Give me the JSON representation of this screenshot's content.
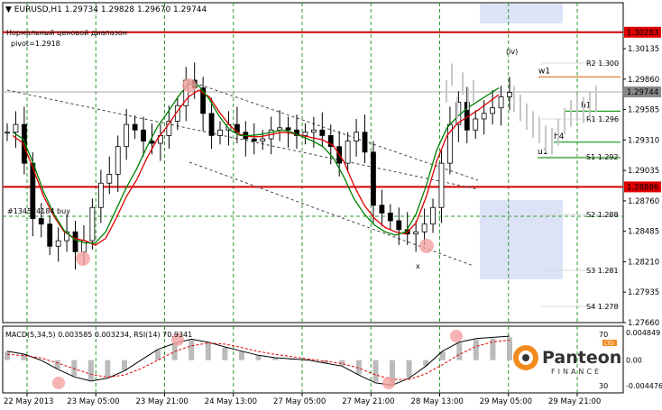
{
  "chart_data": [
    {
      "type": "candlestick",
      "title": "EURUSD,H1",
      "ohlc": "1.29734 1.29828 1.29670 1.29744",
      "range_label": "Нормальный ценовой диапазон",
      "pivot_label": "pivot=1.2918",
      "order_label": "#134574184 buy",
      "wave_label": "(iv)",
      "point_label": "x",
      "ylim": [
        1.2766,
        1.3055
      ],
      "y_ticks": [
        "1.30135",
        "1.29860",
        "1.29585",
        "1.29310",
        "1.29035",
        "1.28760",
        "1.28485",
        "1.28210",
        "1.27935",
        "1.27660"
      ],
      "x_ticks": [
        "22 May 2013",
        "23 May 05:00",
        "23 May 21:00",
        "24 May 13:00",
        "27 May 05:00",
        "27 May 21:00",
        "28 May 13:00",
        "29 May 05:00",
        "29 May 21:00"
      ],
      "price_markers": [
        {
          "label": "1.30283",
          "value": 1.30283,
          "color": "#e00000"
        },
        {
          "label": "1.29744",
          "value": 1.29744,
          "color": "#888888"
        },
        {
          "label": "1.28886",
          "value": 1.28886,
          "color": "#e00000"
        }
      ],
      "levels": [
        {
          "name": "w1",
          "value": 1.2988,
          "color": "#e07020"
        },
        {
          "name": "h1",
          "value": 1.2957,
          "color": "#20a020"
        },
        {
          "name": "h4",
          "value": 1.2929,
          "color": "#20a020"
        },
        {
          "name": "u1",
          "value": 1.2915,
          "color": "#20a020"
        }
      ],
      "faded_levels": [
        "R2 1.300",
        "R1 1.296",
        "S1 1.292",
        "S2 1.288",
        "S3 1.281",
        "S4 1.278"
      ],
      "series": [
        {
          "name": "",
          "type": "candles",
          "values": [
            1.2938,
            1.2945,
            1.291,
            1.286,
            1.2855,
            1.2835,
            1.284,
            1.2848,
            1.283,
            1.284,
            1.287,
            1.2892,
            1.29,
            1.2925,
            1.2945,
            1.294,
            1.293,
            1.2928,
            1.2935,
            1.2948,
            1.2962,
            1.2985,
            1.2978,
            1.2955,
            1.2935,
            1.294,
            1.2945,
            1.2938,
            1.2932,
            1.293,
            1.2932,
            1.294,
            1.2942,
            1.294,
            1.2935,
            1.2938,
            1.294,
            1.2935,
            1.2925,
            1.291,
            1.293,
            1.2938,
            1.292,
            1.2872,
            1.2865,
            1.2858,
            1.285,
            1.2846,
            1.2848,
            1.2855,
            1.287,
            1.291,
            1.2945,
            1.2965,
            1.294,
            1.295,
            1.2955,
            1.296,
            1.297,
            1.2974
          ],
          "color": "#000000"
        },
        {
          "name": "",
          "type": "ma",
          "values": [
            1.2935,
            1.2928,
            1.2905,
            1.288,
            1.2862,
            1.2848,
            1.2842,
            1.284,
            1.2836,
            1.2842,
            1.286,
            1.288,
            1.2895,
            1.2915,
            1.2932,
            1.2944,
            1.2958,
            1.297,
            1.2976,
            1.297,
            1.2956,
            1.2944,
            1.2936,
            1.2934,
            1.2934,
            1.2936,
            1.2938,
            1.2937,
            1.2935,
            1.2933,
            1.2931,
            1.2926,
            1.2912,
            1.289,
            1.2872,
            1.286,
            1.2852,
            1.2848,
            1.2846,
            1.2856,
            1.288,
            1.2912,
            1.2935,
            1.2946,
            1.2952,
            1.2958,
            1.2965,
            1.2972
          ],
          "color": "#e00000"
        },
        {
          "name": "",
          "type": "ma",
          "values": [
            1.2938,
            1.2932,
            1.291,
            1.2884,
            1.2864,
            1.2849,
            1.2841,
            1.2838,
            1.2838,
            1.2848,
            1.2868,
            1.2888,
            1.2905,
            1.2925,
            1.2943,
            1.2956,
            1.297,
            1.2982,
            1.298,
            1.2968,
            1.2952,
            1.294,
            1.2935,
            1.2935,
            1.2936,
            1.2938,
            1.294,
            1.2938,
            1.2934,
            1.293,
            1.2925,
            1.2915,
            1.2898,
            1.2878,
            1.2864,
            1.2854,
            1.2848,
            1.2845,
            1.2848,
            1.2864,
            1.289,
            1.2922,
            1.2942,
            1.2952,
            1.296,
            1.2966,
            1.2972,
            1.2978
          ],
          "color": "#008000"
        }
      ]
    },
    {
      "type": "line",
      "title": "MACD(5,34,5) 0.003585 0.003234, RSI(14) 70.9341",
      "y_ticks": [
        "0.004849",
        "0.00",
        "-0.004476"
      ],
      "rsi_ticks": [
        "70",
        "30"
      ],
      "series": [
        {
          "name": "",
          "values": [
            0.0015,
            0.001,
            0.0,
            -0.0015,
            -0.0028,
            -0.0035,
            -0.003,
            -0.0018,
            0.0,
            0.0018,
            0.0028,
            0.0035,
            0.003,
            0.0022,
            0.0015,
            0.0008,
            0.0004,
            0.0002,
            0.0,
            -0.0005,
            -0.001,
            -0.0025,
            -0.0038,
            -0.0042,
            -0.003,
            -0.001,
            0.0015,
            0.003,
            0.0036,
            0.0038,
            0.004
          ],
          "color": "#000000"
        },
        {
          "name": "",
          "values": [
            0.001,
            0.0008,
            0.0004,
            -0.0005,
            -0.0015,
            -0.0025,
            -0.003,
            -0.0026,
            -0.0015,
            0.0,
            0.0015,
            0.0025,
            0.003,
            0.0028,
            0.0022,
            0.0015,
            0.001,
            0.0006,
            0.0002,
            -0.0002,
            -0.0006,
            -0.0014,
            -0.0026,
            -0.0034,
            -0.0034,
            -0.0024,
            -0.0008,
            0.001,
            0.0024,
            0.0032,
            0.0035
          ],
          "color": "#e00000"
        }
      ]
    }
  ],
  "logo": {
    "name": "Panteon",
    "sub": "FINANCE",
    "badge": "LTD"
  }
}
